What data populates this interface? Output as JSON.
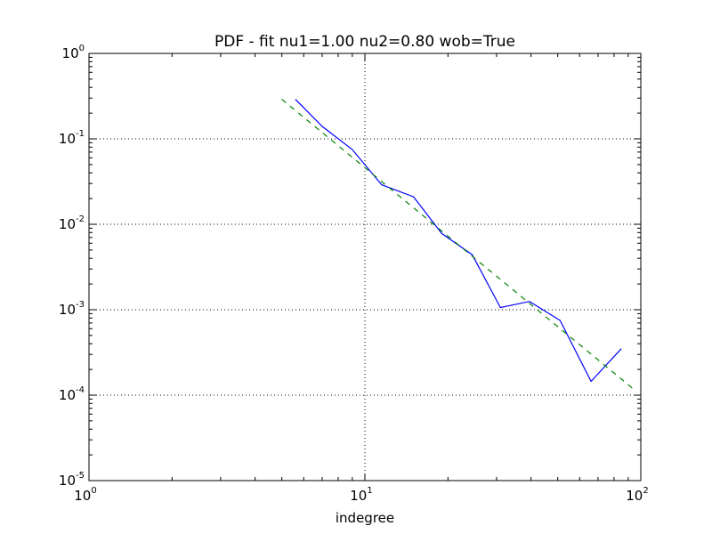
{
  "chart_data": {
    "type": "line",
    "title": "PDF - fit nu1=1.00 nu2=0.80 wob=True",
    "xlabel": "indegree",
    "ylabel": "",
    "xscale": "log",
    "yscale": "log",
    "xlim": [
      1,
      100
    ],
    "ylim": [
      1e-05,
      1
    ],
    "grid": true,
    "x_ticks": [
      {
        "base": "10",
        "exp": "0",
        "value": 1
      },
      {
        "base": "10",
        "exp": "1",
        "value": 10
      },
      {
        "base": "10",
        "exp": "2",
        "value": 100
      }
    ],
    "y_ticks": [
      {
        "base": "10",
        "exp": "0",
        "value": 1
      },
      {
        "base": "10",
        "exp": "-1",
        "value": 0.1
      },
      {
        "base": "10",
        "exp": "-2",
        "value": 0.01
      },
      {
        "base": "10",
        "exp": "-3",
        "value": 0.001
      },
      {
        "base": "10",
        "exp": "-4",
        "value": 0.0001
      },
      {
        "base": "10",
        "exp": "-5",
        "value": 1e-05
      }
    ],
    "series": [
      {
        "color": "#0000ff",
        "style": "solid",
        "x": [
          5.6,
          7.0,
          9.0,
          11.5,
          15.0,
          19.0,
          24.5,
          31.0,
          39.5,
          51.0,
          66.0,
          85.0
        ],
        "y": [
          0.29,
          0.14,
          0.075,
          0.029,
          0.021,
          0.0078,
          0.0044,
          0.00106,
          0.00125,
          0.00075,
          0.000145,
          0.00035
        ]
      },
      {
        "color": "#008000",
        "style": "dashed",
        "x": [
          5.0,
          95.0
        ],
        "y": [
          0.29,
          0.000115
        ]
      }
    ]
  }
}
